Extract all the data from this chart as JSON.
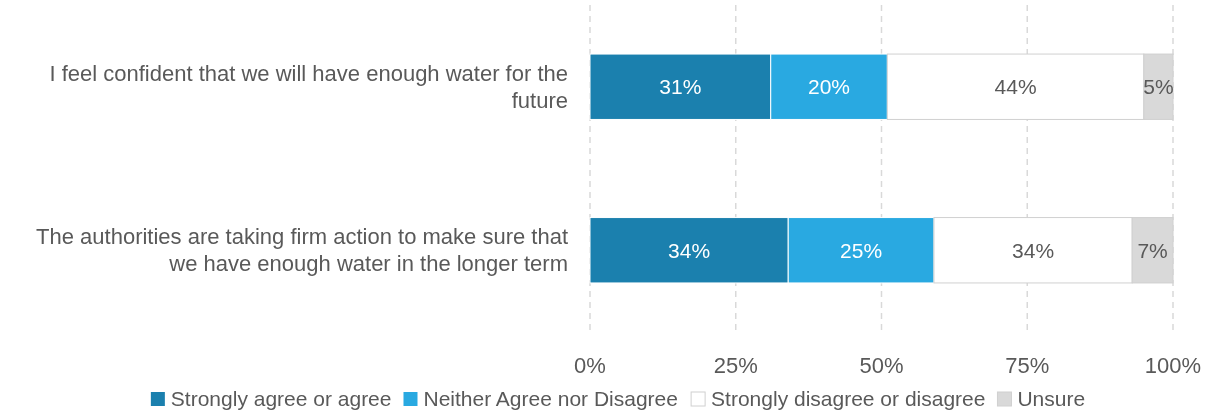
{
  "chart_data": {
    "type": "bar",
    "orientation": "horizontal",
    "stacked": true,
    "categories": [
      "I feel confident that we will have enough water for the future",
      "The authorities are taking firm action to make sure that we have enough water in the longer term"
    ],
    "series": [
      {
        "name": "Strongly agree or agree",
        "color": "#1b80ae",
        "values": [
          31,
          34
        ],
        "value_labels": [
          "31%",
          "34%"
        ]
      },
      {
        "name": "Neither Agree nor Disagree",
        "color": "#29a9e1",
        "values": [
          20,
          25
        ],
        "value_labels": [
          "20%",
          "25%"
        ]
      },
      {
        "name": "Strongly disagree or disagree",
        "color": "#ffffff",
        "values": [
          44,
          34
        ],
        "value_labels": [
          "44%",
          "34%"
        ]
      },
      {
        "name": "Unsure",
        "color": "#d9d9d9",
        "values": [
          5,
          7
        ],
        "value_labels": [
          "5%",
          "7%"
        ]
      }
    ],
    "xlim": [
      0,
      100
    ],
    "xticks": [
      {
        "value": 0,
        "label": "0%"
      },
      {
        "value": 25,
        "label": "25%"
      },
      {
        "value": 50,
        "label": "50%"
      },
      {
        "value": 75,
        "label": "75%"
      },
      {
        "value": 100,
        "label": "100%"
      }
    ],
    "grid": "x",
    "line_style": "dashed",
    "legend": "bottom"
  }
}
